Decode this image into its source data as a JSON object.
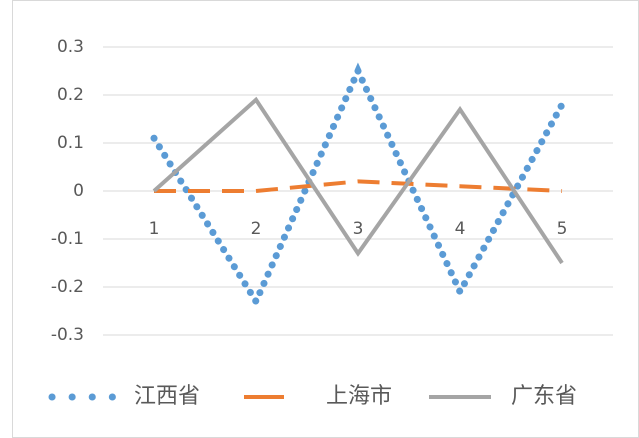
{
  "chart_data": {
    "type": "line",
    "categories": [
      "1",
      "2",
      "3",
      "4",
      "5"
    ],
    "series": [
      {
        "name": "江西省",
        "color": "#5b9bd5",
        "dash": "dot",
        "values": [
          0.11,
          -0.23,
          0.25,
          -0.21,
          0.18
        ]
      },
      {
        "name": "上海市",
        "color": "#ed7d31",
        "dash": "dash",
        "values": [
          0,
          0,
          0.02,
          0.01,
          0
        ]
      },
      {
        "name": "广东省",
        "color": "#a5a5a5",
        "dash": "solid",
        "values": [
          0,
          0.19,
          -0.13,
          0.17,
          -0.15
        ]
      }
    ],
    "ylim": [
      -0.3,
      0.3
    ],
    "yticks": [
      0.3,
      0.2,
      0.1,
      0,
      -0.1,
      -0.2,
      -0.3
    ],
    "grid": true,
    "legend": "bottom"
  }
}
